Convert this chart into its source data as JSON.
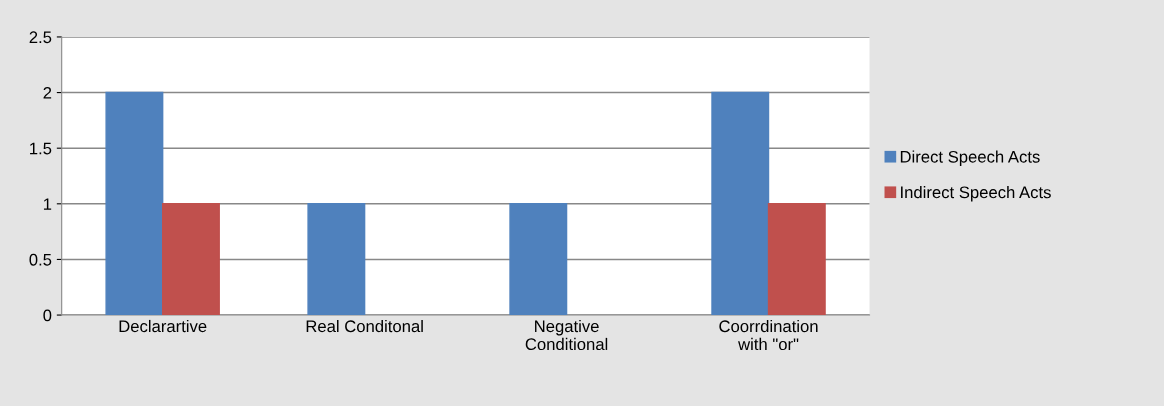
{
  "chart_data": {
    "type": "bar",
    "categories": [
      "Declarartive",
      "Real Conditonal",
      "Negative\nConditional",
      "Coorrdination\nwith \"or\""
    ],
    "series": [
      {
        "name": "Direct Speech Acts",
        "color": "#4f81bd",
        "values": [
          2,
          1,
          1,
          2
        ]
      },
      {
        "name": "Indirect Speech Acts",
        "color": "#c0504d",
        "values": [
          1,
          null,
          null,
          1
        ]
      }
    ],
    "ylim": [
      0,
      2.5
    ],
    "yticks": [
      0,
      0.5,
      1,
      1.5,
      2,
      2.5
    ],
    "grid": "y",
    "legend": "right"
  }
}
